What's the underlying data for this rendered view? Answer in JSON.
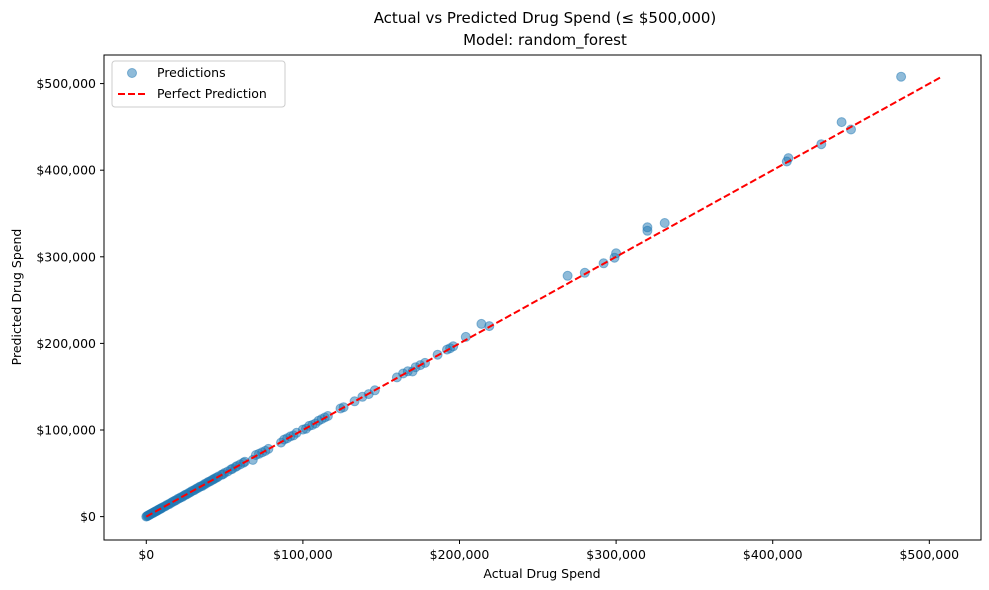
{
  "chart_data": {
    "type": "scatter",
    "title": "Actual vs Predicted Drug Spend (≤ $500,000)",
    "subtitle": "Model: random_forest",
    "xlabel": "Actual Drug Spend",
    "ylabel": "Predicted Drug Spend",
    "xlim": [
      -27000,
      533000
    ],
    "ylim": [
      -27000,
      533000
    ],
    "xticks": [
      0,
      100000,
      200000,
      300000,
      400000,
      500000
    ],
    "yticks": [
      0,
      100000,
      200000,
      300000,
      400000,
      500000
    ],
    "xtick_labels": [
      "$0",
      "$100,000",
      "$200,000",
      "$300,000",
      "$400,000",
      "$500,000"
    ],
    "ytick_labels": [
      "$0",
      "$100,000",
      "$200,000",
      "$300,000",
      "$400,000",
      "$500,000"
    ],
    "grid": false,
    "legend_position": "top-left",
    "series": [
      {
        "name": "Predictions",
        "kind": "scatter",
        "color": "#1f77b4",
        "points": [
          [
            0,
            0
          ],
          [
            500,
            600
          ],
          [
            1000,
            1100
          ],
          [
            1500,
            1500
          ],
          [
            2000,
            2100
          ],
          [
            2500,
            2400
          ],
          [
            3000,
            3100
          ],
          [
            3500,
            3600
          ],
          [
            4000,
            4100
          ],
          [
            4500,
            4400
          ],
          [
            5000,
            5200
          ],
          [
            5500,
            5500
          ],
          [
            6000,
            6100
          ],
          [
            6500,
            6400
          ],
          [
            7000,
            7100
          ],
          [
            7500,
            7600
          ],
          [
            8000,
            8000
          ],
          [
            8500,
            8700
          ],
          [
            9000,
            9100
          ],
          [
            9500,
            9400
          ],
          [
            10000,
            10200
          ],
          [
            11000,
            11100
          ],
          [
            12000,
            11900
          ],
          [
            13000,
            13200
          ],
          [
            14000,
            14100
          ],
          [
            15000,
            14800
          ],
          [
            16000,
            16200
          ],
          [
            17000,
            17100
          ],
          [
            18000,
            18200
          ],
          [
            19000,
            18900
          ],
          [
            20000,
            20300
          ],
          [
            21000,
            21000
          ],
          [
            22000,
            22200
          ],
          [
            23000,
            22800
          ],
          [
            24000,
            24100
          ],
          [
            25000,
            25300
          ],
          [
            26000,
            25900
          ],
          [
            27000,
            27200
          ],
          [
            28000,
            28000
          ],
          [
            29000,
            29300
          ],
          [
            30000,
            30100
          ],
          [
            31000,
            30800
          ],
          [
            32000,
            32400
          ],
          [
            33000,
            33000
          ],
          [
            34000,
            34300
          ],
          [
            35000,
            35100
          ],
          [
            36000,
            35700
          ],
          [
            37000,
            37300
          ],
          [
            38000,
            38000
          ],
          [
            39000,
            39400
          ],
          [
            40000,
            40200
          ],
          [
            41000,
            41000
          ],
          [
            42000,
            42300
          ],
          [
            43000,
            43100
          ],
          [
            44000,
            44400
          ],
          [
            45000,
            45000
          ],
          [
            46000,
            46300
          ],
          [
            48000,
            48300
          ],
          [
            49000,
            49000
          ],
          [
            50000,
            50400
          ],
          [
            52000,
            52100
          ],
          [
            54000,
            54400
          ],
          [
            55000,
            55200
          ],
          [
            57000,
            57300
          ],
          [
            58000,
            58500
          ],
          [
            60000,
            60300
          ],
          [
            62000,
            62200
          ],
          [
            63000,
            63400
          ],
          [
            68000,
            65500
          ],
          [
            70000,
            71200
          ],
          [
            72000,
            72500
          ],
          [
            74000,
            74300
          ],
          [
            76000,
            75900
          ],
          [
            78000,
            78200
          ],
          [
            86000,
            85500
          ],
          [
            88000,
            88900
          ],
          [
            90000,
            90500
          ],
          [
            92000,
            92600
          ],
          [
            94000,
            93800
          ],
          [
            96000,
            96800
          ],
          [
            100000,
            100500
          ],
          [
            102000,
            101500
          ],
          [
            104000,
            104800
          ],
          [
            106000,
            105800
          ],
          [
            108000,
            107500
          ],
          [
            110000,
            110800
          ],
          [
            112000,
            112600
          ],
          [
            114000,
            114500
          ],
          [
            116000,
            116200
          ],
          [
            124000,
            124800
          ],
          [
            126000,
            126300
          ],
          [
            133000,
            133200
          ],
          [
            138000,
            138400
          ],
          [
            142000,
            141500
          ],
          [
            146000,
            145800
          ],
          [
            160000,
            160800
          ],
          [
            164000,
            165200
          ],
          [
            167000,
            167800
          ],
          [
            170000,
            167600
          ],
          [
            172000,
            172500
          ],
          [
            175000,
            175000
          ],
          [
            178000,
            177500
          ],
          [
            186000,
            187000
          ],
          [
            192000,
            192800
          ],
          [
            194000,
            194500
          ],
          [
            196000,
            196600
          ],
          [
            204000,
            207500
          ],
          [
            214000,
            222500
          ],
          [
            219000,
            220000
          ],
          [
            269000,
            278000
          ],
          [
            280000,
            281500
          ],
          [
            292000,
            292500
          ],
          [
            299000,
            299000
          ],
          [
            300000,
            304000
          ],
          [
            320000,
            330000
          ],
          [
            320000,
            334000
          ],
          [
            331000,
            339000
          ],
          [
            409000,
            410000
          ],
          [
            410000,
            414000
          ],
          [
            431000,
            430000
          ],
          [
            444000,
            455500
          ],
          [
            450000,
            447000
          ],
          [
            482000,
            508000
          ]
        ]
      },
      {
        "name": "Perfect Prediction",
        "kind": "line",
        "color": "#ff0000",
        "x": [
          0,
          508000
        ],
        "y": [
          0,
          508000
        ]
      }
    ]
  }
}
